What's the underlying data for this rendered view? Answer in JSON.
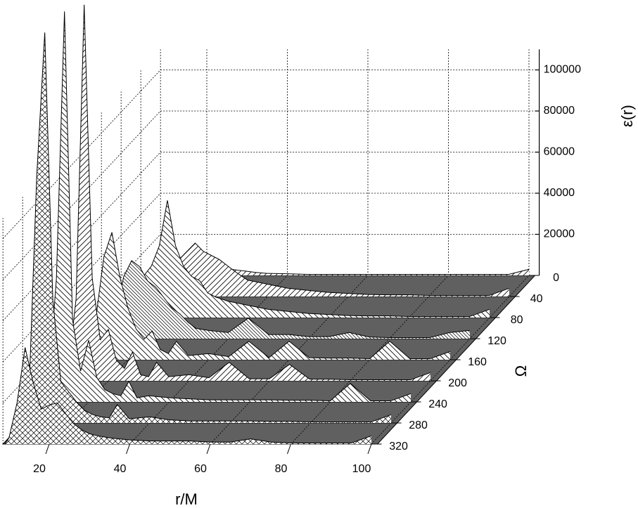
{
  "chart_data": {
    "type": "waterfall",
    "xlabel": "r/M",
    "ylabel": "Ω",
    "zlabel": "ε(r)",
    "x": [
      9,
      10,
      12,
      14,
      16,
      18,
      20,
      22,
      24,
      26,
      28,
      30,
      32,
      35,
      40,
      45,
      50,
      55,
      60,
      65,
      70,
      75,
      80,
      85,
      90,
      95,
      100
    ],
    "xlim": [
      8.5,
      101.5
    ],
    "xticks": [
      20,
      40,
      60,
      80,
      100
    ],
    "ylim": [
      0,
      320
    ],
    "yticks": [
      0,
      40,
      80,
      120,
      160,
      200,
      240,
      280,
      320
    ],
    "zlim": [
      0,
      110000
    ],
    "zticks": [
      20000,
      40000,
      60000,
      80000,
      100000
    ],
    "floor_color": "#606060",
    "line_color": "#000000",
    "fill_color": "#ffffff",
    "grid": true,
    "series": [
      {
        "omega": 0,
        "pattern": "diagonal",
        "values": [
          0,
          1000,
          2000,
          3000,
          4000,
          5000,
          6000,
          5000,
          4000,
          3000,
          2500,
          2000,
          1500,
          1000,
          800,
          500,
          500,
          500,
          500,
          500,
          500,
          500,
          500,
          500,
          500,
          500,
          3000
        ]
      },
      {
        "omega": 40,
        "pattern": "diagonal",
        "values": [
          0,
          2000,
          5000,
          10000,
          15000,
          18000,
          22000,
          26000,
          22000,
          20000,
          18000,
          15000,
          12000,
          8000,
          6000,
          4000,
          3000,
          2000,
          1500,
          1000,
          800,
          800,
          500,
          500,
          500,
          500,
          4000
        ]
      },
      {
        "omega": 80,
        "pattern": "back-diagonal",
        "values": [
          0,
          3000,
          8000,
          20000,
          25000,
          35000,
          57000,
          35000,
          25000,
          20000,
          18000,
          12000,
          10000,
          8000,
          6000,
          4000,
          3000,
          2000,
          1500,
          1000,
          800,
          800,
          500,
          500,
          500,
          500,
          4000
        ]
      },
      {
        "omega": 120,
        "pattern": "dense-diagonal",
        "values": [
          0,
          4000,
          10000,
          30000,
          38000,
          35000,
          28000,
          25000,
          20000,
          15000,
          12000,
          8000,
          5000,
          4000,
          3000,
          10000,
          2000,
          2000,
          1000,
          1000,
          3000,
          800,
          500,
          500,
          500,
          3000,
          4000
        ]
      },
      {
        "omega": 160,
        "pattern": "back-diagonal",
        "values": [
          0,
          5000,
          20000,
          50000,
          62000,
          40000,
          25000,
          15000,
          10000,
          14000,
          5000,
          3000,
          9000,
          2000,
          3000,
          1500,
          9000,
          1000,
          9000,
          1000,
          800,
          800,
          500,
          9000,
          500,
          500,
          4000
        ]
      },
      {
        "omega": 200,
        "pattern": "diagonal",
        "values": [
          0,
          5000,
          40000,
          183000,
          50000,
          20000,
          25000,
          10000,
          6000,
          14000,
          3000,
          2000,
          9000,
          2000,
          3000,
          1500,
          9000,
          1000,
          1000,
          8000,
          800,
          800,
          500,
          500,
          500,
          500,
          4000
        ]
      },
      {
        "omega": 240,
        "pattern": "back-diagonal",
        "values": [
          0,
          8000,
          60000,
          190000,
          40000,
          15000,
          30000,
          12000,
          6000,
          4000,
          3000,
          10000,
          2000,
          3000,
          2000,
          1500,
          1000,
          1000,
          1000,
          1000,
          800,
          800,
          500,
          9000,
          500,
          500,
          4000
        ]
      },
      {
        "omega": 280,
        "pattern": "crosshatch",
        "values": [
          0,
          10000,
          120000,
          190000,
          60000,
          20000,
          15000,
          10000,
          6000,
          4000,
          3000,
          2500,
          9000,
          2000,
          3000,
          1500,
          1000,
          1000,
          1000,
          1000,
          800,
          800,
          500,
          500,
          500,
          500,
          4000
        ]
      },
      {
        "omega": 320,
        "pattern": "crosshatch",
        "values": [
          0,
          3000,
          20000,
          47000,
          30000,
          17000,
          19000,
          20000,
          15000,
          10000,
          7000,
          5000,
          4000,
          3000,
          2000,
          1500,
          1500,
          1500,
          1000,
          1000,
          2500,
          1000,
          500,
          500,
          500,
          500,
          4000
        ]
      }
    ]
  }
}
